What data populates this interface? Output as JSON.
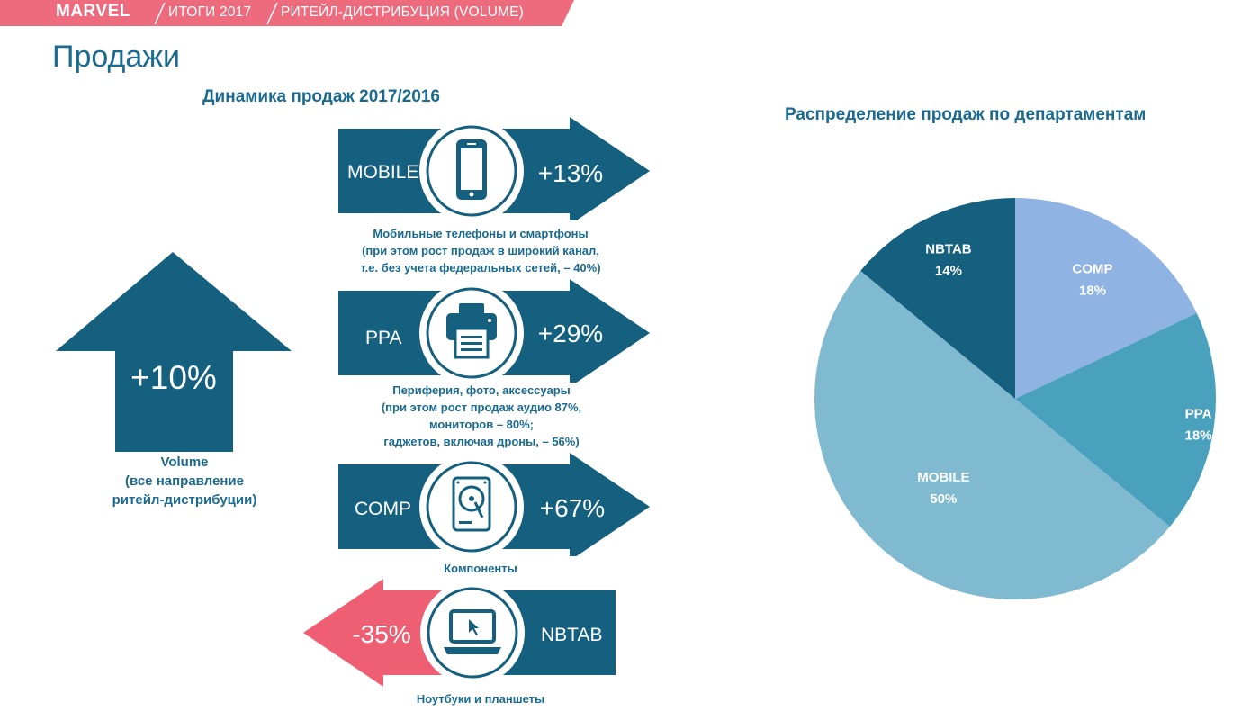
{
  "header": {
    "logo": "MARVEL",
    "crumb_1": "ИТОГИ 2017",
    "crumb_2": "РИТЕЙЛ-ДИСТРИБУЦИЯ (VOLUME)",
    "band_color": "#ee6b7e"
  },
  "page_title": "Продажи",
  "dynamics": {
    "title": "Динамика продаж 2017/2016",
    "volume": {
      "value": "+10%",
      "caption": [
        "Volume",
        "(все направление",
        "ритейл-дистрибуции)"
      ]
    },
    "items": [
      {
        "code": "MOBILE",
        "value": "+13%",
        "icon": "smartphone-icon",
        "direction": "up",
        "caption": [
          "Мобильные телефоны и смартфоны",
          "(при этом рост продаж в широкий канал,",
          "т.е. без учета федеральных сетей, – 40%)"
        ]
      },
      {
        "code": "PPA",
        "value": "+29%",
        "icon": "printer-icon",
        "direction": "up",
        "caption": [
          "Периферия, фото, аксессуары",
          "(при этом рост продаж аудио 87%,",
          "мониторов – 80%;",
          "гаджетов, включая дроны, – 56%)"
        ]
      },
      {
        "code": "COMP",
        "value": "+67%",
        "icon": "hard-drive-icon",
        "direction": "up",
        "caption": [
          "Компоненты"
        ]
      },
      {
        "code": "NBTAB",
        "value": "-35%",
        "icon": "laptop-icon",
        "direction": "down",
        "caption": [
          "Ноутбуки и планшеты"
        ]
      }
    ],
    "colors": {
      "positive": "#15607f",
      "negative": "#ee5f73"
    }
  },
  "chart_data": {
    "type": "pie",
    "title": "Распределение продаж по департаментам",
    "slices": [
      {
        "label": "COMP",
        "value": 18,
        "display": "18%",
        "color": "#8fb4e3"
      },
      {
        "label": "PPA",
        "value": 18,
        "display": "18%",
        "color": "#4aa1bd"
      },
      {
        "label": "MOBILE",
        "value": 50,
        "display": "50%",
        "color": "#7fbad0"
      },
      {
        "label": "NBTAB",
        "value": 14,
        "display": "14%",
        "color": "#15607f"
      }
    ],
    "start": "12 o'clock",
    "direction": "clockwise",
    "legend": "none"
  }
}
